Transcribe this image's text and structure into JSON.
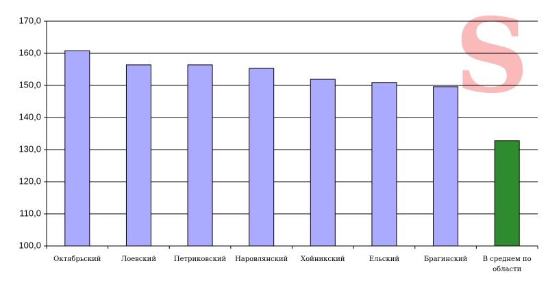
{
  "chart_data": {
    "type": "bar",
    "categories": [
      "Октябрьский",
      "Лоевский",
      "Петриковский",
      "Наровлянский",
      "Хойникский",
      "Ельский",
      "Брагинский",
      "В среднем по области"
    ],
    "values": [
      160.8,
      156.4,
      156.4,
      155.3,
      151.9,
      150.9,
      149.6,
      132.8
    ],
    "colors": [
      "#aaaaff",
      "#aaaaff",
      "#aaaaff",
      "#aaaaff",
      "#aaaaff",
      "#aaaaff",
      "#aaaaff",
      "#2e8b2e"
    ],
    "ylim": [
      100,
      170
    ],
    "yticks": [
      {
        "value": 100,
        "label": "100,0"
      },
      {
        "value": 110,
        "label": "110,0"
      },
      {
        "value": 120,
        "label": "120,0"
      },
      {
        "value": 130,
        "label": "130,0"
      },
      {
        "value": 140,
        "label": "140,0"
      },
      {
        "value": 150,
        "label": "150,0"
      },
      {
        "value": 160,
        "label": "160,0"
      },
      {
        "value": 170,
        "label": "170,0"
      }
    ],
    "grid": true,
    "watermark": "S"
  }
}
